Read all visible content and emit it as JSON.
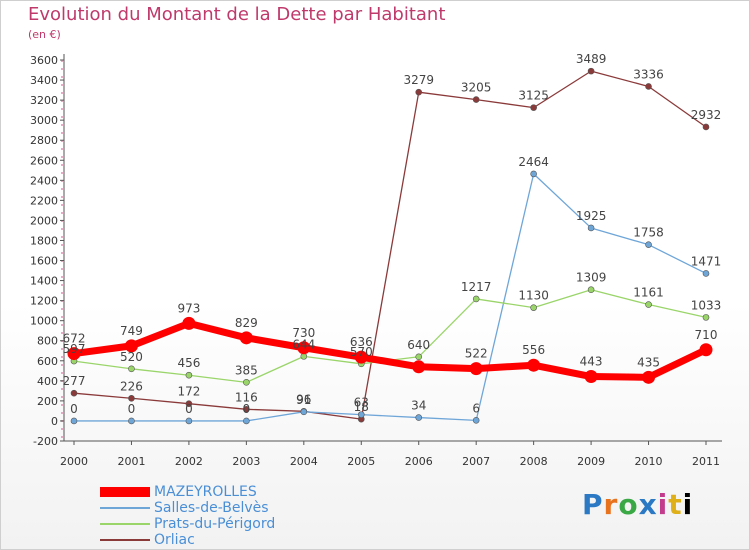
{
  "title": "Evolution du Montant de la Dette par Habitant",
  "unit_label": "(en €)",
  "logo_text": "Proxiti",
  "chart_data": {
    "type": "line",
    "title": "Evolution du Montant de la Dette par Habitant",
    "subtitle": "(en €)",
    "xlabel": "",
    "ylabel": "",
    "ylim": [
      -200,
      3600
    ],
    "ytick_step": 200,
    "grid": false,
    "legend_position": "bottom-left",
    "x": [
      "2000",
      "2001",
      "2002",
      "2003",
      "2004",
      "2005",
      "2006",
      "2007",
      "2008",
      "2009",
      "2010",
      "2011"
    ],
    "series": [
      {
        "name": "MAZEYROLLES",
        "color": "#ff0000",
        "values": [
          672,
          749,
          973,
          829,
          730,
          636,
          540,
          522,
          556,
          443,
          435,
          710
        ],
        "labels": [
          "672",
          "749",
          "973",
          "829",
          "730",
          "636",
          "",
          "522",
          "556",
          "443",
          "435",
          "710"
        ]
      },
      {
        "name": "Salles-de-Belvès",
        "color": "#6fa6d8",
        "values": [
          0,
          0,
          0,
          0,
          91,
          63,
          34,
          6,
          2464,
          1925,
          1758,
          1471
        ],
        "labels": [
          "0",
          "0",
          "0",
          "0",
          "91",
          "63",
          "34",
          "6",
          "2464",
          "1925",
          "1758",
          "1471"
        ]
      },
      {
        "name": "Prats-du-Périgord",
        "color": "#9ad56a",
        "values": [
          597,
          520,
          456,
          385,
          644,
          570,
          640,
          1217,
          1130,
          1309,
          1161,
          1033
        ],
        "labels": [
          "597",
          "520",
          "456",
          "385",
          "644",
          "570",
          "640",
          "1217",
          "1130",
          "1309",
          "1161",
          "1033"
        ]
      },
      {
        "name": "Orliac",
        "color": "#8b3a3a",
        "values": [
          277,
          226,
          172,
          116,
          96,
          18,
          3279,
          3205,
          3125,
          3489,
          3336,
          2932
        ],
        "labels": [
          "277",
          "226",
          "172",
          "116",
          "96",
          "18",
          "3279",
          "3205",
          "3125",
          "3489",
          "3336",
          "2932"
        ]
      }
    ]
  }
}
